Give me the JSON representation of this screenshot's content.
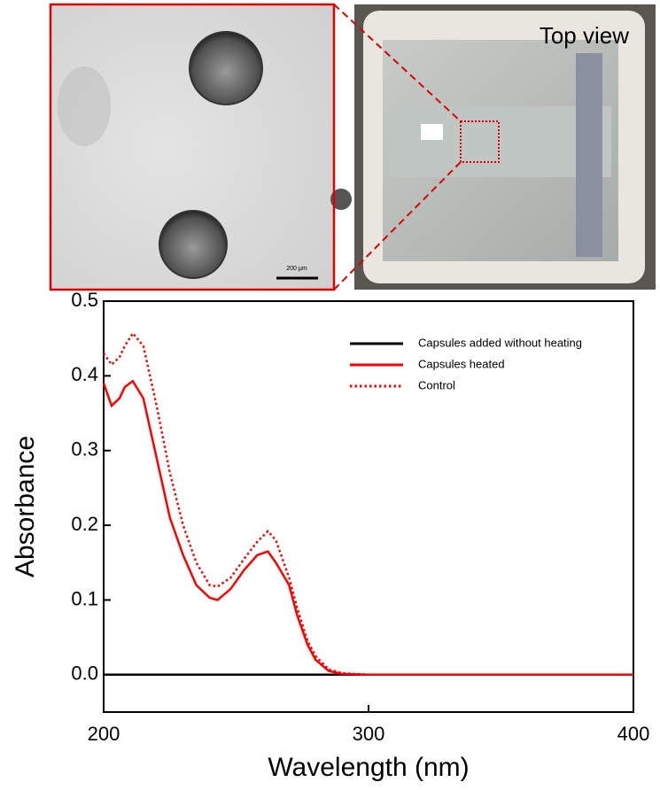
{
  "images": {
    "inset_label": "Top view",
    "scale_bar": "200 μm"
  },
  "chart_data": {
    "type": "line",
    "x_label": "Wavelength (nm)",
    "y_label": "Absorbance",
    "x": [
      200,
      203,
      206,
      208,
      211,
      215,
      220,
      225,
      230,
      235,
      240,
      243,
      248,
      253,
      258,
      262,
      265,
      270,
      273,
      277,
      280,
      285,
      290,
      300,
      350,
      400
    ],
    "series": [
      {
        "name": "Capsules added without heating",
        "color": "#000000",
        "line_style": "solid",
        "values": [
          0,
          0,
          0,
          0,
          0,
          0,
          0,
          0,
          0,
          0,
          0,
          0,
          0,
          0,
          0,
          0,
          0,
          0,
          0,
          0,
          0,
          0,
          0,
          0,
          0,
          0
        ]
      },
      {
        "name": "Capsules heated",
        "color": "#ff0000",
        "line_style": "solid",
        "values": [
          0.39,
          0.36,
          0.37,
          0.385,
          0.393,
          0.37,
          0.29,
          0.21,
          0.16,
          0.12,
          0.103,
          0.1,
          0.115,
          0.14,
          0.16,
          0.165,
          0.15,
          0.12,
          0.08,
          0.04,
          0.02,
          0.005,
          0.001,
          0,
          0,
          0
        ]
      },
      {
        "name": "Control",
        "color": "#ff0000",
        "line_style": "dotted",
        "values": [
          0.43,
          0.415,
          0.425,
          0.44,
          0.457,
          0.44,
          0.36,
          0.27,
          0.2,
          0.15,
          0.12,
          0.118,
          0.13,
          0.155,
          0.178,
          0.192,
          0.18,
          0.13,
          0.09,
          0.045,
          0.025,
          0.007,
          0.002,
          0,
          0,
          0
        ]
      }
    ],
    "xlim": [
      200,
      400
    ],
    "xticks": [
      200,
      300,
      400
    ],
    "ylim": [
      -0.05,
      0.5
    ],
    "yticks": [
      {
        "value": 0,
        "label": "0.0"
      },
      0.1,
      0.2,
      0.3,
      0.4,
      0.5
    ],
    "legend": "top-right"
  }
}
